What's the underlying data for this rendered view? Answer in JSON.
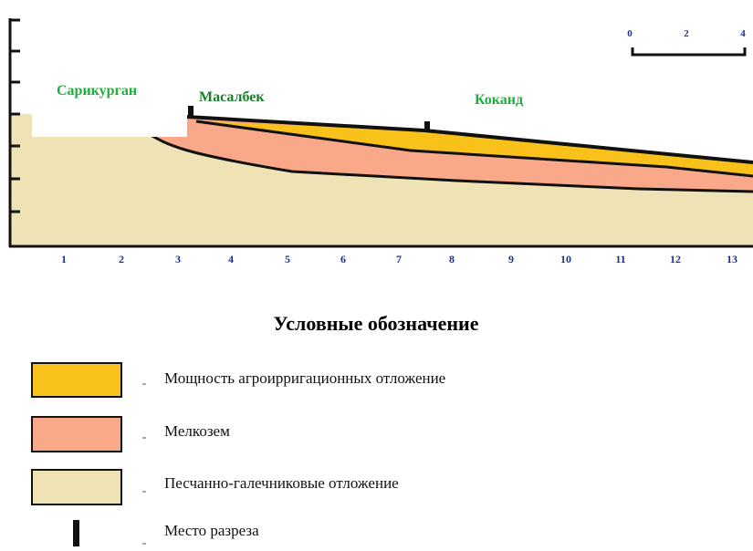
{
  "profile": {
    "places": [
      "Сарикурган",
      "Масалбек",
      "Коканд"
    ],
    "x_labels": [
      "1",
      "2",
      "3",
      "4",
      "5",
      "6",
      "7",
      "8",
      "9",
      "10",
      "11",
      "12",
      "13"
    ],
    "scale_labels": [
      "0",
      "2",
      "4"
    ]
  },
  "legend": {
    "title": "Условные обозначение",
    "items": [
      "Мощность агроирригационных отложение",
      "Мелкозем",
      "Песчанно-галечниковые отложение",
      "Место разреза"
    ]
  }
}
